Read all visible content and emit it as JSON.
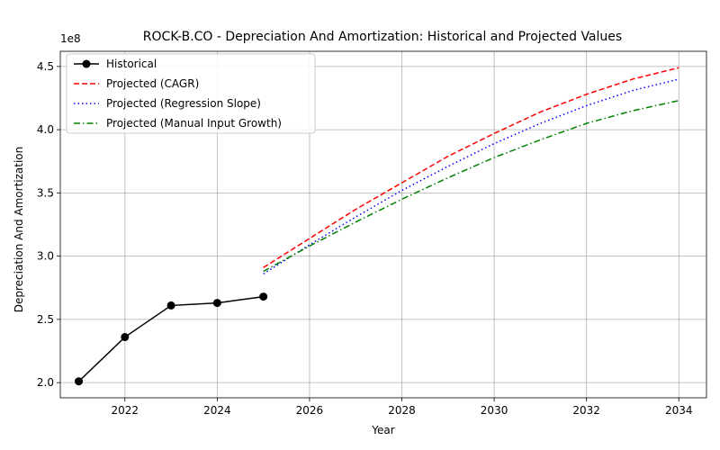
{
  "chart_data": {
    "type": "line",
    "title": "ROCK-B.CO - Depreciation And Amortization: Historical and Projected Values",
    "xlabel": "Year",
    "ylabel": "Depreciation And Amortization",
    "y_offset_text": "1e8",
    "xlim": [
      2020.6,
      2034.6
    ],
    "ylim": [
      188000000,
      462000000
    ],
    "x_ticks": [
      2022,
      2024,
      2026,
      2028,
      2030,
      2032,
      2034
    ],
    "x_tick_labels": [
      "2022",
      "2024",
      "2026",
      "2028",
      "2030",
      "2032",
      "2034"
    ],
    "y_ticks": [
      200000000,
      250000000,
      300000000,
      350000000,
      400000000,
      450000000
    ],
    "y_tick_labels": [
      "2.0",
      "2.5",
      "3.0",
      "3.5",
      "4.0",
      "4.5"
    ],
    "grid": true,
    "legend_position": "top-left",
    "series": [
      {
        "name": "Historical",
        "color": "#000000",
        "style": "solid-marker",
        "x": [
          2021,
          2022,
          2023,
          2024,
          2025
        ],
        "y": [
          201000000,
          236000000,
          261000000,
          263000000,
          268000000
        ]
      },
      {
        "name": "Projected (CAGR)",
        "color": "#ff0000",
        "style": "dashed",
        "x": [
          2025,
          2026,
          2027,
          2028,
          2029,
          2030,
          2031,
          2032,
          2033,
          2034
        ],
        "y": [
          291000000,
          314000000,
          337000000,
          358000000,
          379000000,
          397000000,
          414000000,
          428000000,
          440000000,
          449000000
        ]
      },
      {
        "name": "Projected (Regression Slope)",
        "color": "#0000ff",
        "style": "dotted",
        "x": [
          2025,
          2026,
          2027,
          2028,
          2029,
          2030,
          2031,
          2032,
          2033,
          2034
        ],
        "y": [
          286000000,
          309000000,
          331000000,
          352000000,
          371000000,
          389000000,
          405000000,
          419000000,
          431000000,
          440000000
        ]
      },
      {
        "name": "Projected (Manual Input Growth)",
        "color": "#008000",
        "style": "dashdot",
        "x": [
          2025,
          2026,
          2027,
          2028,
          2029,
          2030,
          2031,
          2032,
          2033,
          2034
        ],
        "y": [
          288000000,
          308000000,
          327000000,
          345000000,
          362000000,
          378000000,
          392000000,
          405000000,
          415000000,
          423000000
        ]
      }
    ]
  }
}
